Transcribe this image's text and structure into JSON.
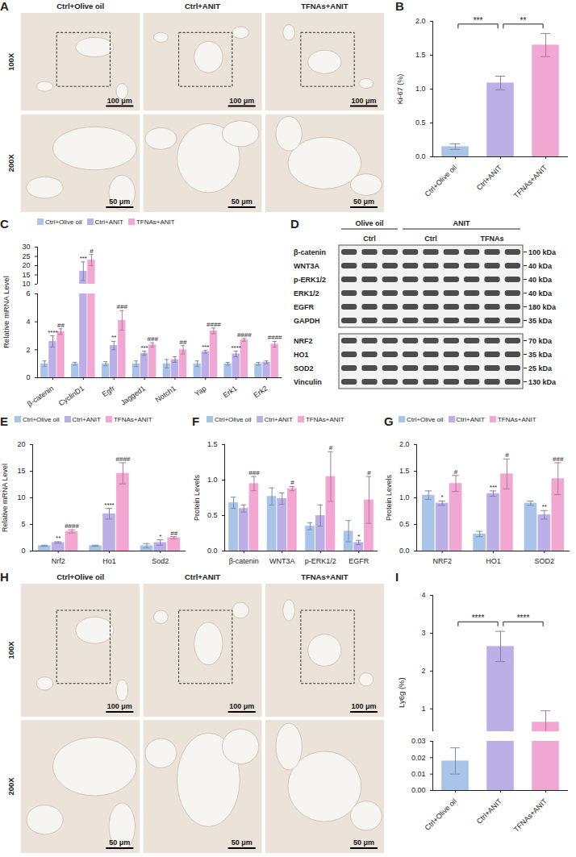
{
  "chart_data": [
    {
      "panel": "B",
      "type": "bar",
      "ylabel": "Ki-67 (%)",
      "categories": [
        "Ctrl+Olive oil",
        "Ctrl+ANIT",
        "TFNAs+ANIT"
      ],
      "values": [
        0.15,
        1.09,
        1.65
      ],
      "errors": [
        0.04,
        0.1,
        0.17
      ],
      "colors": [
        "#a9c4e8",
        "#bcaee6",
        "#f2a7d2"
      ],
      "ylim": [
        0,
        2
      ],
      "yticks": [
        {
          "value": 0,
          "label": "0.0"
        },
        {
          "value": 0.5,
          "label": "0.5"
        },
        {
          "value": 1,
          "label": "1.0"
        },
        {
          "value": 1.5,
          "label": "1.5"
        },
        {
          "value": 2,
          "label": "2.0"
        }
      ],
      "comparisons": [
        {
          "from": "Ctrl+Olive oil",
          "to": "Ctrl+ANIT",
          "label": "***"
        },
        {
          "from": "Ctrl+ANIT",
          "to": "TFNAs+ANIT",
          "label": "**"
        }
      ]
    },
    {
      "panel": "C",
      "type": "bar",
      "ylabel": "Relative mRNA Level",
      "legend": "top",
      "categories": [
        "β-catenin",
        "CyclinD1",
        "Egfr",
        "Jagged1",
        "Notch1",
        "Yap",
        "Erk1",
        "Erk2"
      ],
      "series": [
        {
          "name": "Ctrl+Olive oil",
          "color": "#a9c4e8",
          "values": [
            1.0,
            1.0,
            1.0,
            1.0,
            1.0,
            1.0,
            1.0,
            1.0
          ],
          "errors": [
            0.2,
            0.1,
            0.15,
            0.2,
            0.3,
            0.2,
            0.1,
            0.1
          ],
          "significance": [
            null,
            null,
            null,
            null,
            null,
            null,
            null,
            null
          ]
        },
        {
          "name": "Ctrl+ANIT",
          "color": "#bcaee6",
          "values": [
            2.6,
            17,
            2.3,
            1.75,
            1.3,
            1.85,
            1.7,
            1.1
          ],
          "errors": [
            0.4,
            5,
            0.3,
            0.15,
            0.2,
            0.1,
            0.2,
            0.1
          ],
          "significance": [
            "****",
            "***",
            "**",
            "***",
            null,
            "***",
            "****",
            null
          ]
        },
        {
          "name": "TFNAs+ANIT",
          "color": "#f2a7d2",
          "values": [
            3.3,
            23,
            4.1,
            2.35,
            2.0,
            3.35,
            2.7,
            2.4
          ],
          "errors": [
            0.2,
            3,
            0.7,
            0.15,
            0.3,
            0.2,
            0.1,
            0.2
          ],
          "significance": [
            "##",
            "#",
            "###",
            "###",
            "##",
            "####",
            "####",
            "####"
          ]
        }
      ],
      "ylim": [
        0,
        30
      ],
      "axis_break": [
        6,
        10
      ],
      "yticks": [
        0,
        2,
        4,
        6,
        10,
        15,
        20,
        25,
        30
      ]
    },
    {
      "panel": "E",
      "type": "bar",
      "ylabel": "Relative mRNA Level",
      "legend": "top",
      "categories": [
        "Nrf2",
        "Ho1",
        "Sod2"
      ],
      "series": [
        {
          "name": "Ctrl+Olive oil",
          "color": "#a9c4e8",
          "values": [
            1.0,
            1.0,
            1.0
          ],
          "errors": [
            0.1,
            0.1,
            0.4
          ],
          "significance": [
            null,
            null,
            null
          ]
        },
        {
          "name": "Ctrl+ANIT",
          "color": "#bcaee6",
          "values": [
            1.6,
            7.0,
            1.6
          ],
          "errors": [
            0.15,
            1.0,
            0.5
          ],
          "significance": [
            "**",
            "****",
            "*"
          ]
        },
        {
          "name": "TFNAs+ANIT",
          "color": "#f2a7d2",
          "values": [
            3.7,
            14.6,
            2.5
          ],
          "errors": [
            0.3,
            2.0,
            0.2
          ],
          "significance": [
            "####",
            "####",
            "##"
          ]
        }
      ],
      "ylim": [
        0,
        20
      ],
      "yticks": [
        0,
        5,
        10,
        15,
        20
      ]
    },
    {
      "panel": "F",
      "type": "bar",
      "ylabel": "Protein Levels",
      "legend": "top",
      "categories": [
        "β-catenin",
        "WNT3A",
        "p-ERK1/2",
        "EGFR"
      ],
      "series": [
        {
          "name": "Ctrl+Olive oil",
          "color": "#a9c4e8",
          "values": [
            0.68,
            0.77,
            0.35,
            0.28
          ],
          "errors": [
            0.08,
            0.12,
            0.05,
            0.15
          ],
          "significance": [
            null,
            null,
            null,
            null
          ]
        },
        {
          "name": "Ctrl+ANIT",
          "color": "#bcaee6",
          "values": [
            0.6,
            0.74,
            0.5,
            0.12
          ],
          "errors": [
            0.05,
            0.08,
            0.15,
            0.03
          ],
          "significance": [
            null,
            null,
            null,
            "*"
          ]
        },
        {
          "name": "TFNAs+ANIT",
          "color": "#f2a7d2",
          "values": [
            0.95,
            0.88,
            1.05,
            0.72
          ],
          "errors": [
            0.1,
            0.03,
            0.35,
            0.33
          ],
          "significance": [
            "###",
            "#",
            "#",
            "#"
          ]
        }
      ],
      "ylim": [
        0,
        1.5
      ],
      "yticks": [
        {
          "value": 0,
          "label": "0.0"
        },
        {
          "value": 0.5,
          "label": "0.5"
        },
        {
          "value": 1,
          "label": "1.0"
        },
        {
          "value": 1.5,
          "label": "1.5"
        }
      ]
    },
    {
      "panel": "G",
      "type": "bar",
      "ylabel": "Protein Levels",
      "legend": "top",
      "categories": [
        "NRF2",
        "HO1",
        "SOD2"
      ],
      "series": [
        {
          "name": "Ctrl+Olive oil",
          "color": "#a9c4e8",
          "values": [
            1.05,
            0.32,
            0.9
          ],
          "errors": [
            0.08,
            0.05,
            0.04
          ],
          "significance": [
            null,
            null,
            null
          ]
        },
        {
          "name": "Ctrl+ANIT",
          "color": "#bcaee6",
          "values": [
            0.9,
            1.08,
            0.68
          ],
          "errors": [
            0.04,
            0.05,
            0.08
          ],
          "significance": [
            "*",
            "***",
            "**"
          ]
        },
        {
          "name": "TFNAs+ANIT",
          "color": "#f2a7d2",
          "values": [
            1.27,
            1.45,
            1.36
          ],
          "errors": [
            0.15,
            0.28,
            0.3
          ],
          "significance": [
            "#",
            "#",
            "###"
          ]
        }
      ],
      "ylim": [
        0,
        2
      ],
      "yticks": [
        {
          "value": 0,
          "label": "0.0"
        },
        {
          "value": 0.5,
          "label": "0.5"
        },
        {
          "value": 1,
          "label": "1.0"
        },
        {
          "value": 1.5,
          "label": "1.5"
        },
        {
          "value": 2,
          "label": "2.0"
        }
      ]
    },
    {
      "panel": "I",
      "type": "bar",
      "ylabel": "Ly6g (%)",
      "categories": [
        "Ctrl+Olive oil",
        "Ctrl+ANIT",
        "TFNAs+ANIT"
      ],
      "values": [
        0.018,
        2.65,
        0.65
      ],
      "errors": [
        0.008,
        0.4,
        0.3
      ],
      "colors": [
        "#a9c4e8",
        "#bcaee6",
        "#f2a7d2"
      ],
      "ylim": [
        0,
        4
      ],
      "axis_break": [
        0.03,
        0.4
      ],
      "yticks": [
        {
          "value": 0,
          "label": "0.00"
        },
        {
          "value": 0.01,
          "label": "0.01"
        },
        {
          "value": 0.02,
          "label": "0.02"
        },
        {
          "value": 0.03,
          "label": "0.03"
        },
        1,
        2,
        3,
        4
      ],
      "comparisons": [
        {
          "from": "Ctrl+Olive oil",
          "to": "Ctrl+ANIT",
          "label": "****"
        },
        {
          "from": "Ctrl+ANIT",
          "to": "TFNAs+ANIT",
          "label": "****"
        }
      ]
    }
  ],
  "images": [
    {
      "panel": "A",
      "columns": [
        "Ctrl+Olive oil",
        "Ctrl+ANIT",
        "TFNAs+ANIT"
      ],
      "rows": [
        {
          "label": "100X",
          "scale_bar": "100 μm"
        },
        {
          "label": "200X",
          "scale_bar": "50 μm"
        }
      ]
    },
    {
      "panel": "H",
      "columns": [
        "Ctrl+Olive oil",
        "Ctrl+ANIT",
        "TFNAs+ANIT"
      ],
      "rows": [
        {
          "label": "100X",
          "scale_bar": "100 μm"
        },
        {
          "label": "200X",
          "scale_bar": "50 μm"
        }
      ]
    }
  ],
  "western_blot": {
    "panel": "D",
    "groups": [
      {
        "label": "Olive oil",
        "subgroups": [
          "Ctrl"
        ]
      },
      {
        "label": "ANIT",
        "subgroups": [
          "Ctrl",
          "TFNAs"
        ]
      }
    ],
    "lanes_per_subgroup": 3,
    "blots": [
      [
        {
          "protein": "β-catenin",
          "size": "100 kDa"
        },
        {
          "protein": "WNT3A",
          "size": "40 kDa"
        },
        {
          "protein": "p-ERK1/2",
          "size": "40 kDa"
        },
        {
          "protein": "ERK1/2",
          "size": "40 kDa"
        },
        {
          "protein": "EGFR",
          "size": "180 kDa"
        },
        {
          "protein": "GAPDH",
          "size": "35 kDa"
        }
      ],
      [
        {
          "protein": "NRF2",
          "size": "70 kDa"
        },
        {
          "protein": "HO1",
          "size": "35 kDa"
        },
        {
          "protein": "SOD2",
          "size": "25 kDa"
        },
        {
          "protein": "Vinculin",
          "size": "130 kDa"
        }
      ]
    ]
  }
}
